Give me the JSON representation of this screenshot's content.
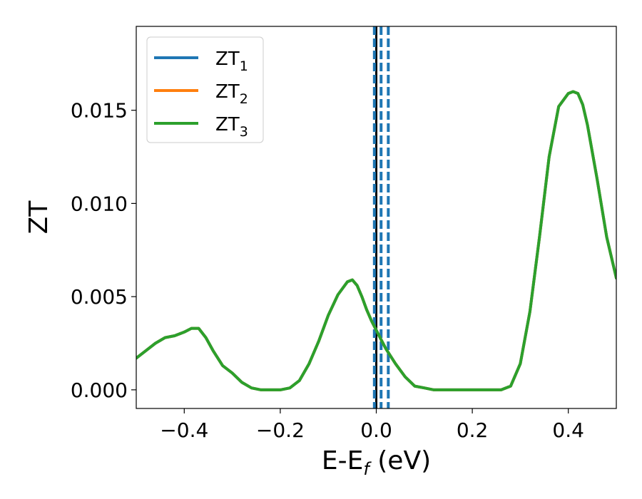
{
  "chart_data": {
    "type": "line",
    "xlabel": "E-E",
    "xlabel_sub": "f",
    "xlabel_unit": " (eV)",
    "ylabel": "ZT",
    "xlim": [
      -0.5,
      0.5
    ],
    "ylim": [
      -0.001,
      0.0195
    ],
    "xticks": [
      -0.4,
      -0.2,
      0.0,
      0.2,
      0.4
    ],
    "xtick_labels": [
      "−0.4",
      "−0.2",
      "0.0",
      "0.2",
      "0.4"
    ],
    "yticks": [
      0.0,
      0.005,
      0.01,
      0.015
    ],
    "ytick_labels": [
      "0.000",
      "0.005",
      "0.010",
      "0.015"
    ],
    "grid": false,
    "legend_position": "top-left",
    "legend": [
      {
        "main": "ZT",
        "sub": "1",
        "color": "#1f77b4"
      },
      {
        "main": "ZT",
        "sub": "2",
        "color": "#ff7f0e"
      },
      {
        "main": "ZT",
        "sub": "3",
        "color": "#2ca02c"
      }
    ],
    "vertical_lines": [
      {
        "x": 0.0,
        "color": "#000000",
        "style": "solid"
      },
      {
        "x": -0.004,
        "color": "#1f77b4",
        "style": "dashed"
      },
      {
        "x": 0.01,
        "color": "#1f77b4",
        "style": "dashed"
      },
      {
        "x": 0.025,
        "color": "#1f77b4",
        "style": "dashed"
      }
    ],
    "x": [
      -0.5,
      -0.48,
      -0.46,
      -0.44,
      -0.42,
      -0.4,
      -0.385,
      -0.37,
      -0.355,
      -0.34,
      -0.32,
      -0.3,
      -0.28,
      -0.26,
      -0.24,
      -0.22,
      -0.2,
      -0.18,
      -0.16,
      -0.14,
      -0.12,
      -0.1,
      -0.08,
      -0.06,
      -0.05,
      -0.04,
      -0.03,
      -0.02,
      -0.01,
      0.0,
      0.01,
      0.02,
      0.04,
      0.06,
      0.08,
      0.1,
      0.12,
      0.14,
      0.16,
      0.18,
      0.2,
      0.22,
      0.24,
      0.26,
      0.28,
      0.3,
      0.32,
      0.34,
      0.36,
      0.38,
      0.4,
      0.41,
      0.42,
      0.43,
      0.44,
      0.46,
      0.48,
      0.5
    ],
    "series": [
      {
        "name": "ZT1",
        "color": "#1f77b4",
        "values": [
          0.0017,
          0.0021,
          0.0025,
          0.0028,
          0.0029,
          0.0031,
          0.0033,
          0.0033,
          0.0028,
          0.0021,
          0.0013,
          0.0009,
          0.0004,
          0.0001,
          0.0,
          0.0,
          0.0,
          0.0001,
          0.0005,
          0.0014,
          0.0026,
          0.004,
          0.0051,
          0.0058,
          0.0059,
          0.0056,
          0.005,
          0.0043,
          0.0037,
          0.0032,
          0.0027,
          0.0022,
          0.0014,
          0.0007,
          0.0002,
          0.0001,
          0.0,
          0.0,
          0.0,
          0.0,
          0.0,
          0.0,
          0.0,
          0.0,
          0.0002,
          0.0014,
          0.0042,
          0.0082,
          0.0125,
          0.0152,
          0.0159,
          0.016,
          0.0159,
          0.0153,
          0.0142,
          0.0113,
          0.0082,
          0.006
        ]
      },
      {
        "name": "ZT2",
        "color": "#ff7f0e",
        "values": [
          0.0017,
          0.0021,
          0.0025,
          0.0028,
          0.0029,
          0.0031,
          0.0033,
          0.0033,
          0.0028,
          0.0021,
          0.0013,
          0.0009,
          0.0004,
          0.0001,
          0.0,
          0.0,
          0.0,
          0.0001,
          0.0005,
          0.0014,
          0.0026,
          0.004,
          0.0051,
          0.0058,
          0.0059,
          0.0056,
          0.005,
          0.0043,
          0.0037,
          0.0032,
          0.0027,
          0.0022,
          0.0014,
          0.0007,
          0.0002,
          0.0001,
          0.0,
          0.0,
          0.0,
          0.0,
          0.0,
          0.0,
          0.0,
          0.0,
          0.0002,
          0.0014,
          0.0042,
          0.0082,
          0.0125,
          0.0152,
          0.0159,
          0.016,
          0.0159,
          0.0153,
          0.0142,
          0.0113,
          0.0082,
          0.006
        ]
      },
      {
        "name": "ZT3",
        "color": "#2ca02c",
        "values": [
          0.0017,
          0.0021,
          0.0025,
          0.0028,
          0.0029,
          0.0031,
          0.0033,
          0.0033,
          0.0028,
          0.0021,
          0.0013,
          0.0009,
          0.0004,
          0.0001,
          0.0,
          0.0,
          0.0,
          0.0001,
          0.0005,
          0.0014,
          0.0026,
          0.004,
          0.0051,
          0.0058,
          0.0059,
          0.0056,
          0.005,
          0.0043,
          0.0037,
          0.0032,
          0.0027,
          0.0022,
          0.0014,
          0.0007,
          0.0002,
          0.0001,
          0.0,
          0.0,
          0.0,
          0.0,
          0.0,
          0.0,
          0.0,
          0.0,
          0.0002,
          0.0014,
          0.0042,
          0.0082,
          0.0125,
          0.0152,
          0.0159,
          0.016,
          0.0159,
          0.0153,
          0.0142,
          0.0113,
          0.0082,
          0.006
        ]
      }
    ]
  }
}
